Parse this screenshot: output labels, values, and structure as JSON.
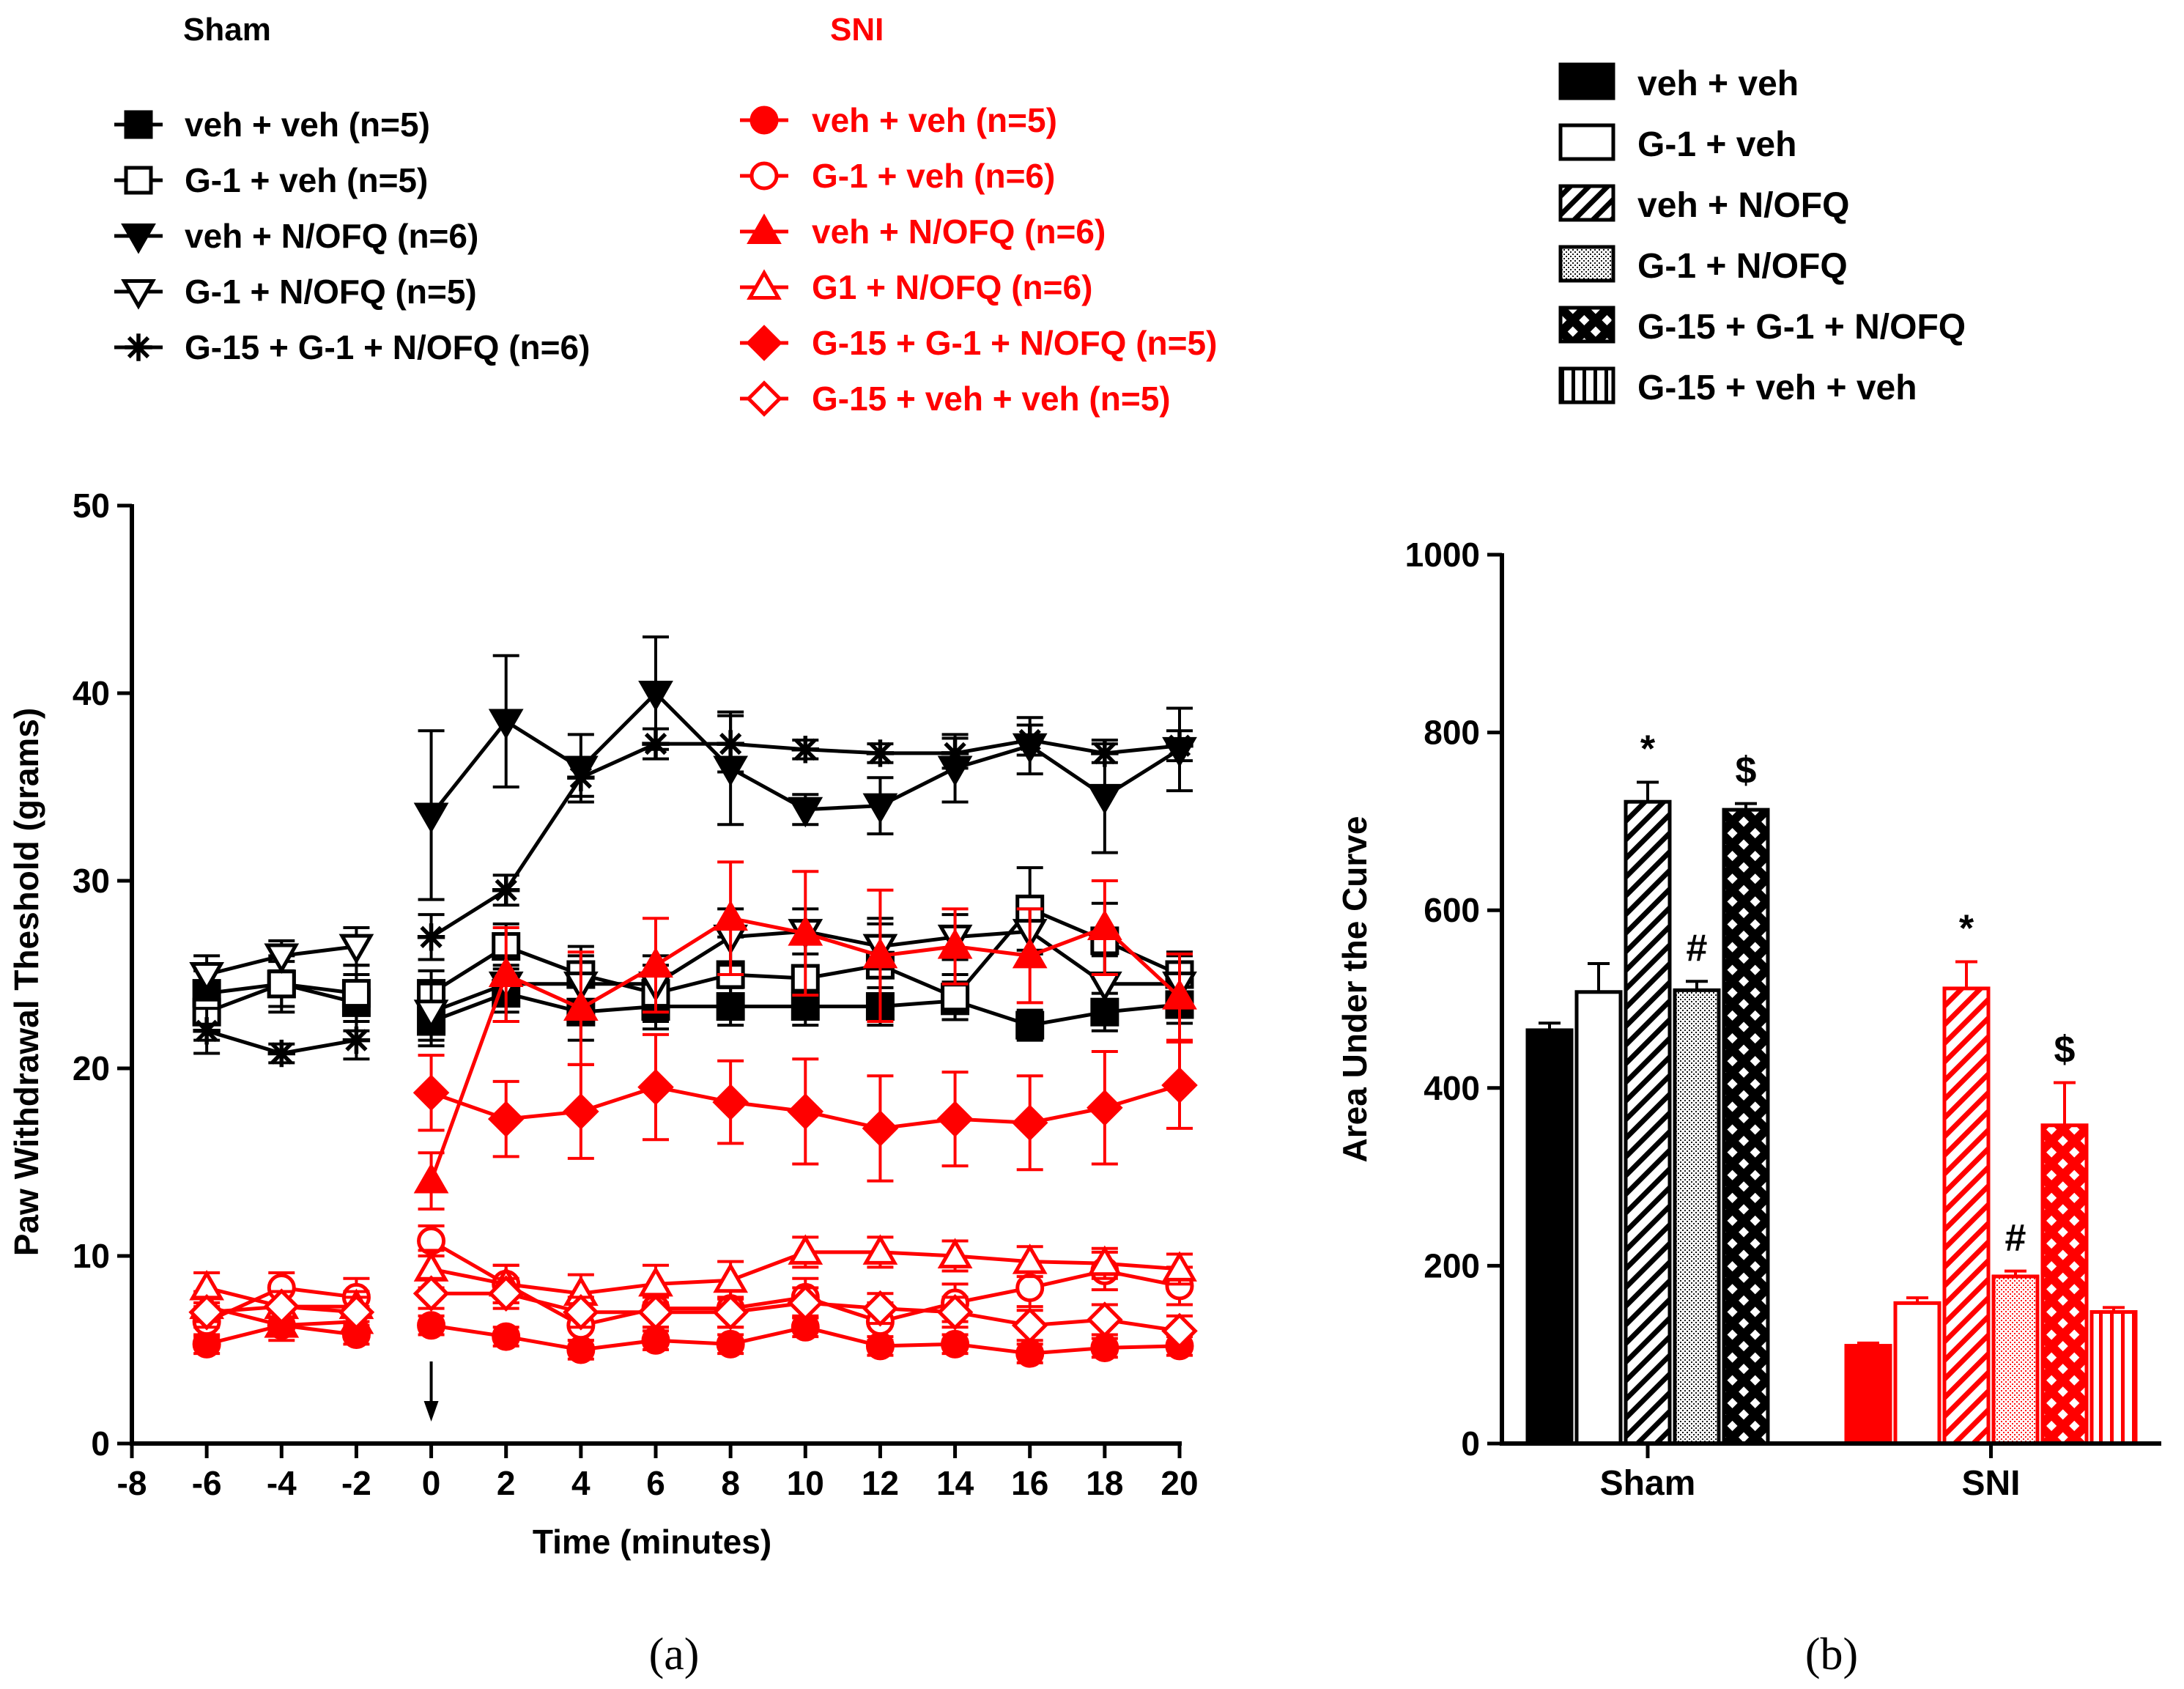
{
  "colors": {
    "sham": "#000000",
    "sni": "#ff0000"
  },
  "panel_labels": {
    "a": "(a)",
    "b": "(b)"
  },
  "legend_a": {
    "sham_header": "Sham",
    "sni_header": "SNI",
    "sham_entries": [
      {
        "label": "veh + veh (n=5)",
        "marker": "square-filled"
      },
      {
        "label": "G-1 + veh (n=5)",
        "marker": "square-open"
      },
      {
        "label": "veh + N/OFQ (n=6)",
        "marker": "triangle-down-filled"
      },
      {
        "label": "G-1 + N/OFQ (n=5)",
        "marker": "triangle-down-open"
      },
      {
        "label": "G-15 + G-1 + N/OFQ (n=6)",
        "marker": "asterisk"
      }
    ],
    "sni_entries": [
      {
        "label": "veh + veh (n=5)",
        "marker": "circle-filled"
      },
      {
        "label": "G-1 + veh (n=6)",
        "marker": "circle-open"
      },
      {
        "label": "veh + N/OFQ (n=6)",
        "marker": "triangle-up-filled"
      },
      {
        "label": "G1 + N/OFQ (n=6)",
        "marker": "triangle-up-open"
      },
      {
        "label": "G-15 + G-1 + N/OFQ (n=5)",
        "marker": "diamond-filled"
      },
      {
        "label": "G-15 + veh + veh (n=5)",
        "marker": "diamond-open"
      }
    ]
  },
  "legend_b": [
    {
      "label": "veh + veh",
      "pattern": "solid"
    },
    {
      "label": "G-1 + veh",
      "pattern": "open"
    },
    {
      "label": "veh + N/OFQ",
      "pattern": "diagonal"
    },
    {
      "label": "G-1 + N/OFQ",
      "pattern": "dotted"
    },
    {
      "label": "G-15 + G-1 + N/OFQ",
      "pattern": "crosshatch"
    },
    {
      "label": "G-15 + veh + veh",
      "pattern": "vertical"
    }
  ],
  "chart_data": [
    {
      "type": "line",
      "xlabel": "Time (minutes)",
      "ylabel": "Paw Withdrawal Theshold (grams)",
      "xlim": [
        -8,
        20
      ],
      "ylim": [
        0,
        50
      ],
      "xticks": [
        -8,
        -6,
        -4,
        -2,
        0,
        2,
        4,
        6,
        8,
        10,
        12,
        14,
        16,
        18,
        20
      ],
      "yticks": [
        0,
        10,
        20,
        30,
        40,
        50
      ],
      "annotation": "arrow at time 0",
      "series": [
        {
          "name": "Sham veh + veh (n=5)",
          "group": "sham",
          "marker": "square-filled",
          "x": [
            -6,
            -4,
            -2,
            0,
            2,
            4,
            6,
            8,
            10,
            12,
            14,
            16,
            18,
            20
          ],
          "y": [
            24,
            24.5,
            23.5,
            22.5,
            24,
            23,
            23.3,
            23.3,
            23.3,
            23.3,
            23.6,
            22.3,
            23,
            23.4
          ],
          "err": [
            1.2,
            1.2,
            1.5,
            1.3,
            1.5,
            1.5,
            1.2,
            1,
            1,
            1,
            1,
            0.8,
            1,
            1
          ]
        },
        {
          "name": "Sham G-1 + veh (n=5)",
          "group": "sham",
          "marker": "square-open",
          "x": [
            -6,
            -4,
            -2,
            0,
            2,
            4,
            6,
            8,
            10,
            12,
            14,
            16,
            18,
            20
          ],
          "y": [
            23,
            24.5,
            24,
            24,
            26.5,
            25,
            24,
            25,
            24.8,
            25.5,
            23.8,
            28.5,
            26.8,
            25
          ],
          "err": [
            1.5,
            1.5,
            1.5,
            1.2,
            1.2,
            1.5,
            1.5,
            2,
            2,
            2.5,
            1.2,
            2.2,
            2,
            1.2
          ]
        },
        {
          "name": "Sham veh + N/OFQ (n=6)",
          "group": "sham",
          "marker": "triangle-down-filled",
          "x": [
            0,
            2,
            4,
            6,
            8,
            10,
            12,
            14,
            16,
            18,
            20
          ],
          "y": [
            33.5,
            38.5,
            36,
            40,
            36,
            33.8,
            34,
            36,
            37.2,
            34.5,
            37
          ],
          "err": [
            4.5,
            3.5,
            1.8,
            3,
            3,
            0.8,
            1.5,
            1.8,
            1.5,
            3,
            2.2
          ]
        },
        {
          "name": "Sham G-1 + N/OFQ (n=5)",
          "group": "sham",
          "marker": "triangle-down-open",
          "x": [
            -6,
            -4,
            -2,
            0,
            2,
            4,
            6,
            8,
            10,
            12,
            14,
            16,
            18,
            20
          ],
          "y": [
            25,
            26,
            26.5,
            23,
            24.5,
            24.5,
            24.5,
            27,
            27.3,
            26.5,
            27,
            27.3,
            24.5,
            24.5
          ],
          "err": [
            1,
            0.8,
            1,
            1.5,
            1.5,
            1.5,
            1.5,
            1.5,
            1.2,
            1.2,
            1.2,
            1.2,
            1.5,
            1.5
          ]
        },
        {
          "name": "Sham G-15 + G-1 + N/OFQ (n=6)",
          "group": "sham",
          "marker": "asterisk",
          "x": [
            -6,
            -4,
            -2,
            0,
            2,
            4,
            6,
            8,
            10,
            12,
            14,
            16,
            18,
            20
          ],
          "y": [
            22,
            20.8,
            21.5,
            27,
            29.5,
            35.5,
            37.3,
            37.3,
            37,
            36.8,
            36.8,
            37.5,
            36.8,
            37.2
          ],
          "err": [
            1.2,
            0.5,
            1,
            1.2,
            0.8,
            1,
            0.8,
            1.5,
            0.5,
            0.5,
            0.8,
            0.8,
            0.5,
            0.8
          ]
        },
        {
          "name": "SNI veh + veh (n=5)",
          "group": "sni",
          "marker": "circle-filled",
          "x": [
            -6,
            -4,
            -2,
            0,
            2,
            4,
            6,
            8,
            10,
            12,
            14,
            16,
            18,
            20
          ],
          "y": [
            5.3,
            6.3,
            5.8,
            6.3,
            5.7,
            5,
            5.5,
            5.3,
            6.2,
            5.2,
            5.3,
            4.8,
            5.1,
            5.2
          ],
          "err": [
            0.5,
            0.5,
            0.5,
            0.5,
            0.5,
            0.5,
            0.5,
            0.5,
            0.5,
            0.5,
            0.5,
            0.5,
            0.5,
            0.5
          ]
        },
        {
          "name": "SNI G-1 + veh (n=6)",
          "group": "sni",
          "marker": "circle-open",
          "x": [
            -6,
            -4,
            -2,
            0,
            2,
            4,
            6,
            8,
            10,
            12,
            14,
            16,
            18,
            20
          ],
          "y": [
            6.5,
            8.3,
            7.8,
            10.8,
            8.5,
            6.3,
            7.2,
            7.2,
            7.8,
            6.5,
            7.5,
            8.3,
            9.2,
            8.4
          ],
          "err": [
            0.8,
            0.8,
            1,
            0.8,
            1,
            0.8,
            1,
            1,
            1,
            1,
            1,
            1,
            1,
            1
          ]
        },
        {
          "name": "SNI veh + N/OFQ (n=6)",
          "group": "sni",
          "marker": "triangle-up-filled",
          "x": [
            -6,
            -4,
            -2,
            0,
            2,
            4,
            6,
            8,
            10,
            12,
            14,
            16,
            18,
            20
          ],
          "y": [
            7.3,
            6.3,
            6.5,
            14,
            25,
            23.2,
            25.5,
            28,
            27.2,
            26,
            26.5,
            26,
            27.5,
            23.8
          ],
          "err": [
            0.8,
            0.8,
            0.8,
            1.5,
            2.5,
            3,
            2.5,
            3,
            3.3,
            3.5,
            2,
            2.5,
            2.5,
            2.3
          ]
        },
        {
          "name": "SNI G1 + N/OFQ (n=6)",
          "group": "sni",
          "marker": "triangle-up-open",
          "x": [
            -6,
            -4,
            -2,
            0,
            2,
            4,
            6,
            8,
            10,
            12,
            14,
            16,
            18,
            20
          ],
          "y": [
            8.3,
            7.3,
            7.3,
            9.3,
            8.5,
            8,
            8.5,
            8.7,
            10.2,
            10.2,
            10,
            9.7,
            9.6,
            9.3
          ],
          "err": [
            0.8,
            0.8,
            0.8,
            1,
            1,
            1,
            1,
            1,
            0.8,
            0.8,
            0.8,
            0.8,
            0.8,
            0.8
          ]
        },
        {
          "name": "SNI G-15 + G-1 + N/OFQ (n=5)",
          "group": "sni",
          "marker": "diamond-filled",
          "x": [
            0,
            2,
            4,
            6,
            8,
            10,
            12,
            14,
            16,
            18,
            20
          ],
          "y": [
            18.7,
            17.3,
            17.7,
            19,
            18.2,
            17.7,
            16.8,
            17.3,
            17.1,
            17.9,
            19.1
          ],
          "err": [
            2,
            2,
            2.5,
            2.8,
            2.2,
            2.8,
            2.8,
            2.5,
            2.5,
            3,
            2.3
          ]
        },
        {
          "name": "SNI G-15 + veh + veh (n=5)",
          "group": "sni",
          "marker": "diamond-open",
          "x": [
            -6,
            -4,
            -2,
            0,
            2,
            4,
            6,
            8,
            10,
            12,
            14,
            16,
            18,
            20
          ],
          "y": [
            7,
            7.3,
            7,
            8,
            8,
            7,
            7,
            7,
            7.5,
            7.2,
            7,
            6.3,
            6.6,
            6
          ],
          "err": [
            0.8,
            0.8,
            0.8,
            0.8,
            0.8,
            0.8,
            0.8,
            0.8,
            0.8,
            0.8,
            0.8,
            0.8,
            0.8,
            0.8
          ]
        }
      ]
    },
    {
      "type": "bar",
      "ylabel": "Area Under the Curve",
      "xlabel": "",
      "ylim": [
        0,
        1000
      ],
      "yticks": [
        0,
        200,
        400,
        600,
        800,
        1000
      ],
      "categories": [
        "Sham",
        "SNI"
      ],
      "series": [
        {
          "name": "veh + veh",
          "pattern": "solid",
          "values": [
            465,
            110
          ],
          "err": [
            8,
            3
          ],
          "annot": [
            "",
            ""
          ]
        },
        {
          "name": "G-1 + veh",
          "pattern": "open",
          "values": [
            508,
            158
          ],
          "err": [
            32,
            6
          ],
          "annot": [
            "",
            ""
          ]
        },
        {
          "name": "veh + N/OFQ",
          "pattern": "diagonal",
          "values": [
            722,
            512
          ],
          "err": [
            22,
            30
          ],
          "annot": [
            "*",
            "*"
          ]
        },
        {
          "name": "G-1 + N/OFQ",
          "pattern": "dotted",
          "values": [
            510,
            188
          ],
          "err": [
            10,
            6
          ],
          "annot": [
            "#",
            "#"
          ]
        },
        {
          "name": "G-15 + G-1 + N/OFQ",
          "pattern": "crosshatch",
          "values": [
            713,
            358
          ],
          "err": [
            7,
            48
          ],
          "annot": [
            "$",
            "$"
          ]
        },
        {
          "name": "G-15 + veh + veh",
          "pattern": "vertical",
          "values": [
            null,
            148
          ],
          "err": [
            null,
            5
          ],
          "annot": [
            "",
            ""
          ]
        }
      ]
    }
  ]
}
